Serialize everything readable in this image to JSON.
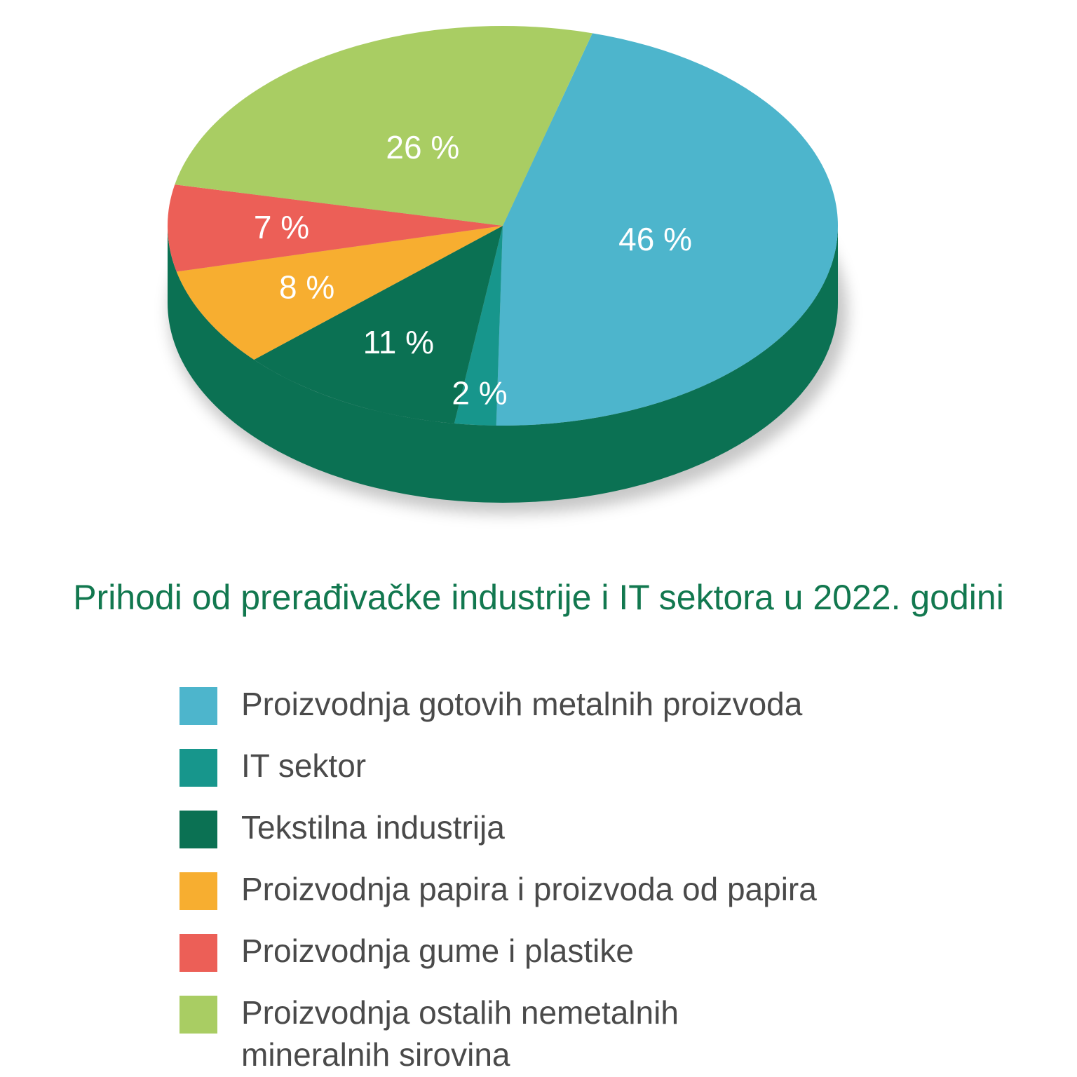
{
  "chart_data": {
    "type": "pie",
    "title": "Prihodi od prerađivačke industrije i IT sektora u 2022. godini",
    "slices": [
      {
        "name": "Proizvodnja gotovih metalnih proizvoda",
        "value": 46,
        "label": "46 %",
        "color": "#4db5cc"
      },
      {
        "name": "IT sektor",
        "value": 2,
        "label": "2 %",
        "color": "#17968c"
      },
      {
        "name": "Tekstilna industrija",
        "value": 11,
        "label": "11 %",
        "color": "#0b7153"
      },
      {
        "name": "Proizvodnja papira i proizvoda od papira",
        "value": 8,
        "label": "8 %",
        "color": "#f7ae30"
      },
      {
        "name": "Proizvodnja gume i plastike",
        "value": 7,
        "label": "7 %",
        "color": "#ec5f57"
      },
      {
        "name": "Proizvodnja ostalih nemetalnih mineralnih sirovina",
        "value": 26,
        "label": "26 %",
        "color": "#a9cd63"
      }
    ],
    "side_color": "#0b7153",
    "legend_position": "bottom"
  }
}
